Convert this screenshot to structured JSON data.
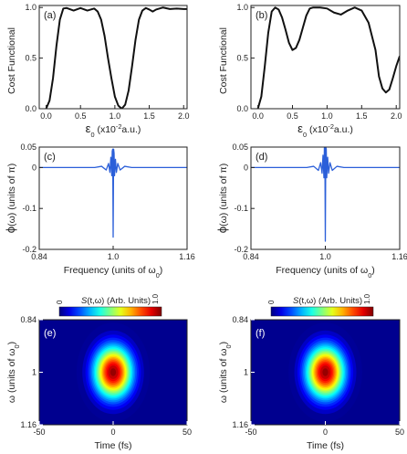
{
  "chart_data": [
    {
      "panel": "(a)",
      "type": "line",
      "ylabel": "Cost Functional",
      "xlabel_symbol": "ε",
      "xlabel_sub": "0",
      "xlabel_rest": " (x10",
      "xlabel_sup": "-2",
      "xlabel_tail": "a.u.)",
      "xlim": [
        -0.1,
        2.05
      ],
      "ylim": [
        0,
        1.02
      ],
      "xticks": [
        "0.0",
        "0.5",
        "1.0",
        "1.5",
        "2.0"
      ],
      "yticks": [
        "0.0",
        "0.5",
        "1.0"
      ],
      "series": [
        {
          "x": [
            0.0,
            0.05,
            0.1,
            0.15,
            0.2,
            0.25,
            0.3,
            0.4,
            0.5,
            0.6,
            0.7,
            0.75,
            0.8,
            0.85,
            0.9,
            0.95,
            1.0,
            1.05,
            1.1,
            1.15,
            1.2,
            1.25,
            1.3,
            1.35,
            1.4,
            1.45,
            1.5,
            1.55,
            1.6,
            1.7,
            1.8,
            1.9,
            2.0,
            2.05
          ],
          "y": [
            0.0,
            0.08,
            0.3,
            0.62,
            0.88,
            0.99,
            0.995,
            0.97,
            0.995,
            0.97,
            0.99,
            0.96,
            0.88,
            0.72,
            0.5,
            0.3,
            0.12,
            0.03,
            0.0,
            0.04,
            0.18,
            0.42,
            0.68,
            0.88,
            0.97,
            0.995,
            0.98,
            0.96,
            0.98,
            1.0,
            0.985,
            0.99,
            0.985,
            0.985
          ],
          "color": "#111111"
        }
      ]
    },
    {
      "panel": "(b)",
      "type": "line",
      "ylabel": "Cost Functional",
      "xlabel_symbol": "ε",
      "xlabel_sub": "0",
      "xlabel_rest": " (x10",
      "xlabel_sup": "-2",
      "xlabel_tail": "a.u.)",
      "xlim": [
        -0.1,
        2.05
      ],
      "ylim": [
        0,
        1.02
      ],
      "xticks": [
        "0.0",
        "0.5",
        "1.0",
        "1.5",
        "2.0"
      ],
      "yticks": [
        "0.0",
        "0.5",
        "1.0"
      ],
      "series": [
        {
          "x": [
            0.0,
            0.05,
            0.1,
            0.15,
            0.2,
            0.25,
            0.3,
            0.35,
            0.4,
            0.45,
            0.5,
            0.55,
            0.6,
            0.65,
            0.7,
            0.75,
            0.8,
            0.9,
            1.0,
            1.1,
            1.2,
            1.3,
            1.4,
            1.5,
            1.6,
            1.7,
            1.75,
            1.8,
            1.85,
            1.9,
            1.95,
            2.0,
            2.05
          ],
          "y": [
            0.0,
            0.12,
            0.42,
            0.75,
            0.96,
            1.0,
            0.98,
            0.9,
            0.78,
            0.65,
            0.58,
            0.6,
            0.68,
            0.8,
            0.92,
            0.99,
            1.0,
            1.0,
            0.99,
            0.95,
            0.93,
            0.97,
            1.0,
            0.97,
            0.85,
            0.58,
            0.32,
            0.2,
            0.16,
            0.19,
            0.3,
            0.42,
            0.52
          ],
          "color": "#111111"
        }
      ]
    },
    {
      "panel": "(c)",
      "type": "line",
      "ylabel_symbol": "ϕ",
      "ylabel_rest": "(ω) (units of π)",
      "xlabel": "Frequency (units of ω",
      "xlabel_sub": "0",
      "xlabel_tail": ")",
      "xlim": [
        0.84,
        1.16
      ],
      "ylim": [
        -0.2,
        0.05
      ],
      "xticks": [
        "0.84",
        "1.0",
        "1.16"
      ],
      "yticks": [
        "0.05",
        "0",
        "-0.1",
        "-0.2"
      ],
      "series": [
        {
          "x": [
            0.84,
            0.96,
            0.975,
            0.985,
            0.99,
            0.993,
            0.995,
            0.997,
            0.998,
            0.999,
            1.0,
            1.001,
            1.002,
            1.003,
            1.005,
            1.007,
            1.01,
            1.015,
            1.025,
            1.04,
            1.16
          ],
          "y": [
            0.0,
            0.0,
            0.003,
            -0.006,
            0.01,
            -0.012,
            0.025,
            -0.02,
            0.04,
            0.045,
            -0.17,
            0.045,
            0.035,
            -0.02,
            0.02,
            -0.012,
            0.01,
            -0.006,
            0.003,
            0.0,
            0.0
          ],
          "color": "#2b5fd9"
        }
      ]
    },
    {
      "panel": "(d)",
      "type": "line",
      "ylabel_symbol": "ϕ",
      "ylabel_rest": "(ω) (units of π)",
      "xlabel": "Frequency (units of ω",
      "xlabel_sub": "0",
      "xlabel_tail": ")",
      "xlim": [
        0.84,
        1.16
      ],
      "ylim": [
        -0.2,
        0.05
      ],
      "xticks": [
        "0.84",
        "1.0",
        "1.16"
      ],
      "yticks": [
        "0.05",
        "0",
        "-0.1",
        "-0.2"
      ],
      "series": [
        {
          "x": [
            0.84,
            0.96,
            0.975,
            0.985,
            0.99,
            0.993,
            0.995,
            0.997,
            0.998,
            0.999,
            1.0,
            1.001,
            1.002,
            1.003,
            1.005,
            1.007,
            1.01,
            1.015,
            1.025,
            1.04,
            1.16
          ],
          "y": [
            0.0,
            0.0,
            0.003,
            -0.007,
            0.012,
            -0.014,
            0.03,
            -0.025,
            0.05,
            0.05,
            -0.18,
            0.05,
            0.045,
            -0.025,
            0.025,
            -0.014,
            0.012,
            -0.007,
            0.003,
            0.0,
            0.0
          ],
          "color": "#2b5fd9"
        }
      ]
    },
    {
      "panel": "(e)",
      "type": "heatmap",
      "colorbar_label_italic": "S",
      "colorbar_label_rest": "(t,ω) (Arb. Units)",
      "colorbar_ticks": [
        "0",
        "1.0"
      ],
      "xlabel": "Time (fs)",
      "ylabel_symbol": "ω",
      "ylabel_rest": " (units of ω",
      "ylabel_sub": "0",
      "ylabel_tail": ")",
      "xlim": [
        -50,
        50
      ],
      "ylim": [
        0.84,
        1.16
      ],
      "xticks": [
        "-50",
        "0",
        "50"
      ],
      "yticks": [
        "0.84",
        "1",
        "1.16"
      ],
      "peak": {
        "t": 0,
        "w": 1.0,
        "width_t": 9,
        "width_w": 0.055,
        "max": 1.0
      }
    },
    {
      "panel": "(f)",
      "type": "heatmap",
      "colorbar_label_italic": "S",
      "colorbar_label_rest": "(t,ω) (Arb. Units)",
      "colorbar_ticks": [
        "0",
        "1.0"
      ],
      "xlabel": "Time (fs)",
      "ylabel_symbol": "ω",
      "ylabel_rest": " (units of ω",
      "ylabel_sub": "0",
      "ylabel_tail": ")",
      "xlim": [
        -50,
        50
      ],
      "ylim": [
        0.84,
        1.16
      ],
      "xticks": [
        "-50",
        "0",
        "50"
      ],
      "yticks": [
        "0.84",
        "1",
        "1.16"
      ],
      "peak": {
        "t": 0,
        "w": 1.0,
        "width_t": 9,
        "width_w": 0.055,
        "max": 1.0
      }
    }
  ],
  "colors": {
    "axis": "#222222",
    "heat_background": "#00008f"
  }
}
